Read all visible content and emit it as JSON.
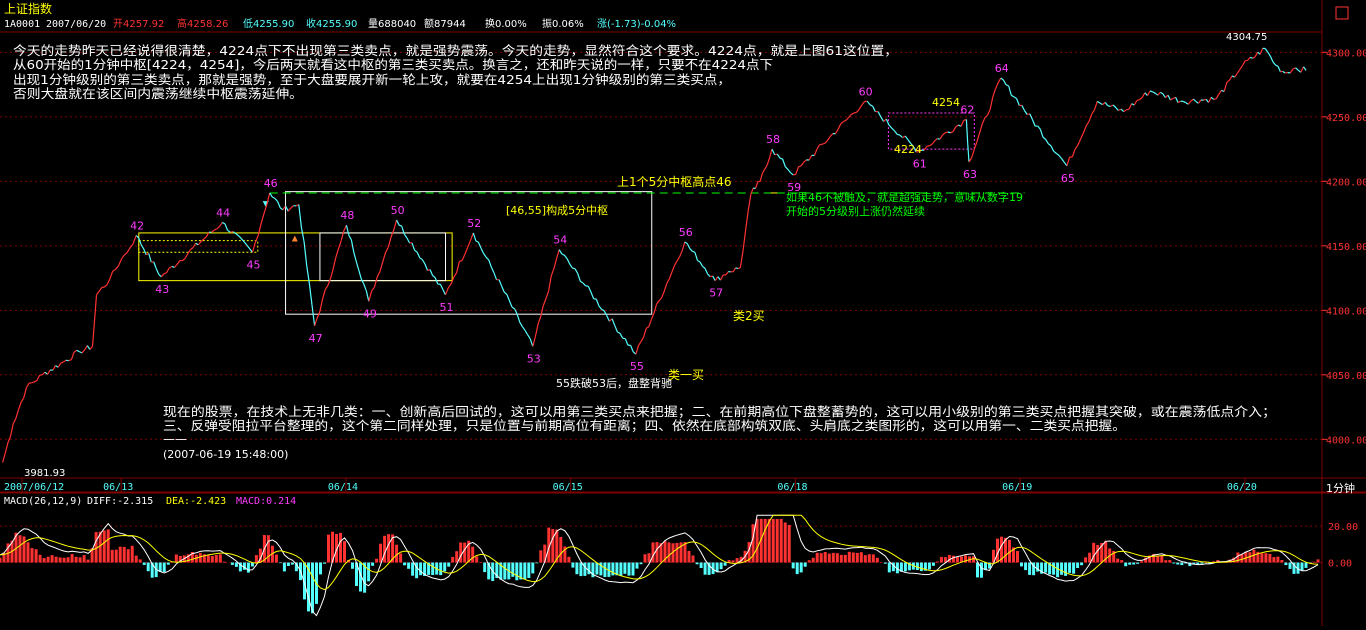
{
  "header": {
    "title": "上证指数",
    "code": "1A0001",
    "date": "2007/06/20",
    "open": "开4257.92",
    "high": "高4258.26",
    "low": "低4255.90",
    "close": "收4255.90",
    "volume": "量688040",
    "amount": "额87944",
    "turnover": "换0.00%",
    "amplitude": "振0.06%",
    "change": "涨(-1.73)-0.04%",
    "price_icon": "arrow-down-icon"
  },
  "commentary": {
    "line1": "今天的走势昨天已经说得很清楚，4224点下不出现第三类卖点，就是强势震荡。今天的走势，显然符合这个要求。4224点，就是上图61这位置，",
    "line2": "从60开始的1分钟中枢[4224，4254]，今后两天就看这中枢的第三类买卖点。换言之，还和昨天说的一样，只要不在4224点下",
    "line3": "出现1分钟级别的第三类卖点，那就是强势，至于大盘要展开新一轮上攻，就要在4254上出现1分钟级别的第三类买点，",
    "line4": "否则大盘就在该区间内震荡继续中枢震荡延伸。",
    "bottom1": "现在的股票，在技术上无非几类：一、创新高后回试的，这可以用第三类买点来把握；二、在前期高位下盘整蓄势的，这可以用小级别的第三类买点把握其突破，或在震荡低点介入；",
    "bottom2": "三、反弹受阻拉平台整理的，这个第二同样处理，只是位置与前期高位有距离；四、依然在底部构筑双底、头肩底之类图形的，这可以用第一、二类买点把握。",
    "bottom3": "——",
    "timestamp": "(2007-06-19 15:48:00)"
  },
  "annotations": {
    "range_label": "[46,55]构成5分中枢",
    "high46_label": "上1个5分中枢高点46",
    "note_green1": "如果46不被触及，就是超强走势，意味从数字19",
    "note_green2": "开始的5分级别上涨仍然延续",
    "buy2": "类2买",
    "buy1": "类一买",
    "note55": "55跌破53后，盘整背驰",
    "pivot_high": "4254",
    "pivot_low": "4224",
    "max_label": "4304.75",
    "min_label": "3981.93"
  },
  "macd": {
    "label": "MACD(26,12,9)",
    "diff": "DIFF:-2.315",
    "dea": "DEA:-2.423",
    "macd_val": "MACD:0.214"
  },
  "period_label": "1分钟",
  "colors": {
    "up": "#ff3232",
    "down": "#54ffff",
    "label_purple": "#ff3cff",
    "yellow": "#ffff00",
    "green": "#00ff00",
    "grid": "#800000",
    "white": "#ffffff"
  },
  "chart_data": {
    "type": "line",
    "ylim": [
      3970,
      4315
    ],
    "y_ticks": [
      "4300.00",
      "4250.00",
      "4200.00",
      "4150.00",
      "4100.00",
      "4050.00",
      "4000.00"
    ],
    "x_ticks": [
      "2007/06/12",
      "06/13",
      "06/14",
      "06/15",
      "06/18",
      "06/19",
      "06/20"
    ],
    "macd_ylim": [
      -35,
      30
    ],
    "macd_ticks": [
      "20.00",
      "0.00"
    ],
    "points": [
      {
        "label": "42",
        "x": 0.103,
        "y": 4158
      },
      {
        "label": "43",
        "x": 0.122,
        "y": 4126
      },
      {
        "label": "44",
        "x": 0.168,
        "y": 4168
      },
      {
        "label": "45",
        "x": 0.191,
        "y": 4145
      },
      {
        "label": "46",
        "x": 0.204,
        "y": 4191
      },
      {
        "label": "47",
        "x": 0.238,
        "y": 4088
      },
      {
        "label": "48",
        "x": 0.262,
        "y": 4166
      },
      {
        "label": "49",
        "x": 0.279,
        "y": 4107
      },
      {
        "label": "50",
        "x": 0.3,
        "y": 4170
      },
      {
        "label": "51",
        "x": 0.337,
        "y": 4112
      },
      {
        "label": "52",
        "x": 0.358,
        "y": 4160
      },
      {
        "label": "53",
        "x": 0.403,
        "y": 4072
      },
      {
        "label": "54",
        "x": 0.423,
        "y": 4147
      },
      {
        "label": "55",
        "x": 0.481,
        "y": 4066
      },
      {
        "label": "56",
        "x": 0.518,
        "y": 4153
      },
      {
        "label": "57",
        "x": 0.541,
        "y": 4123
      },
      {
        "label": "58",
        "x": 0.584,
        "y": 4225
      },
      {
        "label": "59",
        "x": 0.6,
        "y": 4205
      },
      {
        "label": "60",
        "x": 0.654,
        "y": 4262
      },
      {
        "label": "61",
        "x": 0.695,
        "y": 4223
      },
      {
        "label": "62",
        "x": 0.731,
        "y": 4248
      },
      {
        "label": "63",
        "x": 0.733,
        "y": 4215
      },
      {
        "label": "64",
        "x": 0.757,
        "y": 4280
      },
      {
        "label": "65",
        "x": 0.807,
        "y": 4212
      }
    ]
  }
}
